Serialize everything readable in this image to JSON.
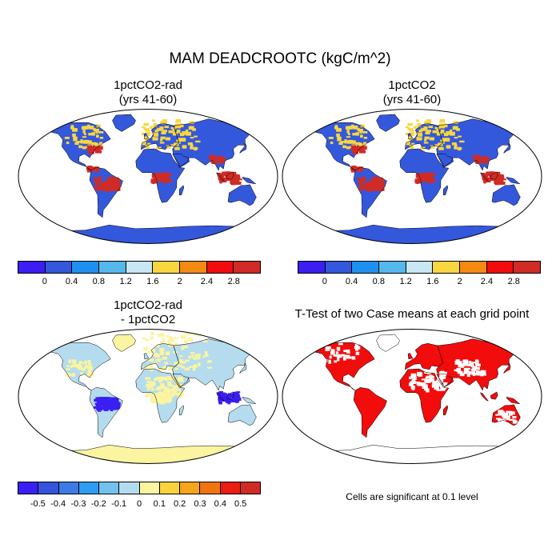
{
  "main_title": "MAM DEADCROOTC (kgC/m^2)",
  "panels": {
    "p1": {
      "title": "1pctCO2-rad\n(yrs 41-60)"
    },
    "p2": {
      "title": "1pctCO2\n(yrs 41-60)"
    },
    "p3": {
      "title": "1pctCO2-rad\n- 1pctCO2"
    },
    "p4": {
      "title": "T-Test of two Case means at each grid point",
      "note": "Cells are significant at 0.1 level"
    }
  },
  "colorbar_abs": {
    "colors": [
      "#3b1ef2",
      "#3458dc",
      "#1e90f0",
      "#55b8ec",
      "#c7e7f4",
      "#f8d640",
      "#f48a12",
      "#f20c0c",
      "#d02b25"
    ],
    "ticks": [
      "0",
      "0.4",
      "0.8",
      "1.2",
      "1.6",
      "2",
      "2.4",
      "2.8"
    ]
  },
  "colorbar_diff": {
    "colors": [
      "#3b1ef2",
      "#3454dc",
      "#3c7ae8",
      "#2e9cf2",
      "#72c0ee",
      "#b4dcee",
      "#fbf4a0",
      "#fbd23c",
      "#f8a41a",
      "#f27410",
      "#ec1c12",
      "#d02b25"
    ],
    "ticks": [
      "-0.5",
      "-0.4",
      "-0.3",
      "-0.2",
      "-0.1",
      "0",
      "0.1",
      "0.2",
      "0.3",
      "0.4",
      "0.5"
    ]
  },
  "map_colors": {
    "ocean": "#ffffff",
    "outline": "#000000",
    "land_abs": "#3458dc",
    "land_diff": "#b4dcee",
    "land_ttest": "#ffffff",
    "signif": "#f20c0c",
    "high": "#d02b25",
    "mid": "#f8d640",
    "low": "#fbf4a0",
    "neg": "#3b1ef2"
  }
}
